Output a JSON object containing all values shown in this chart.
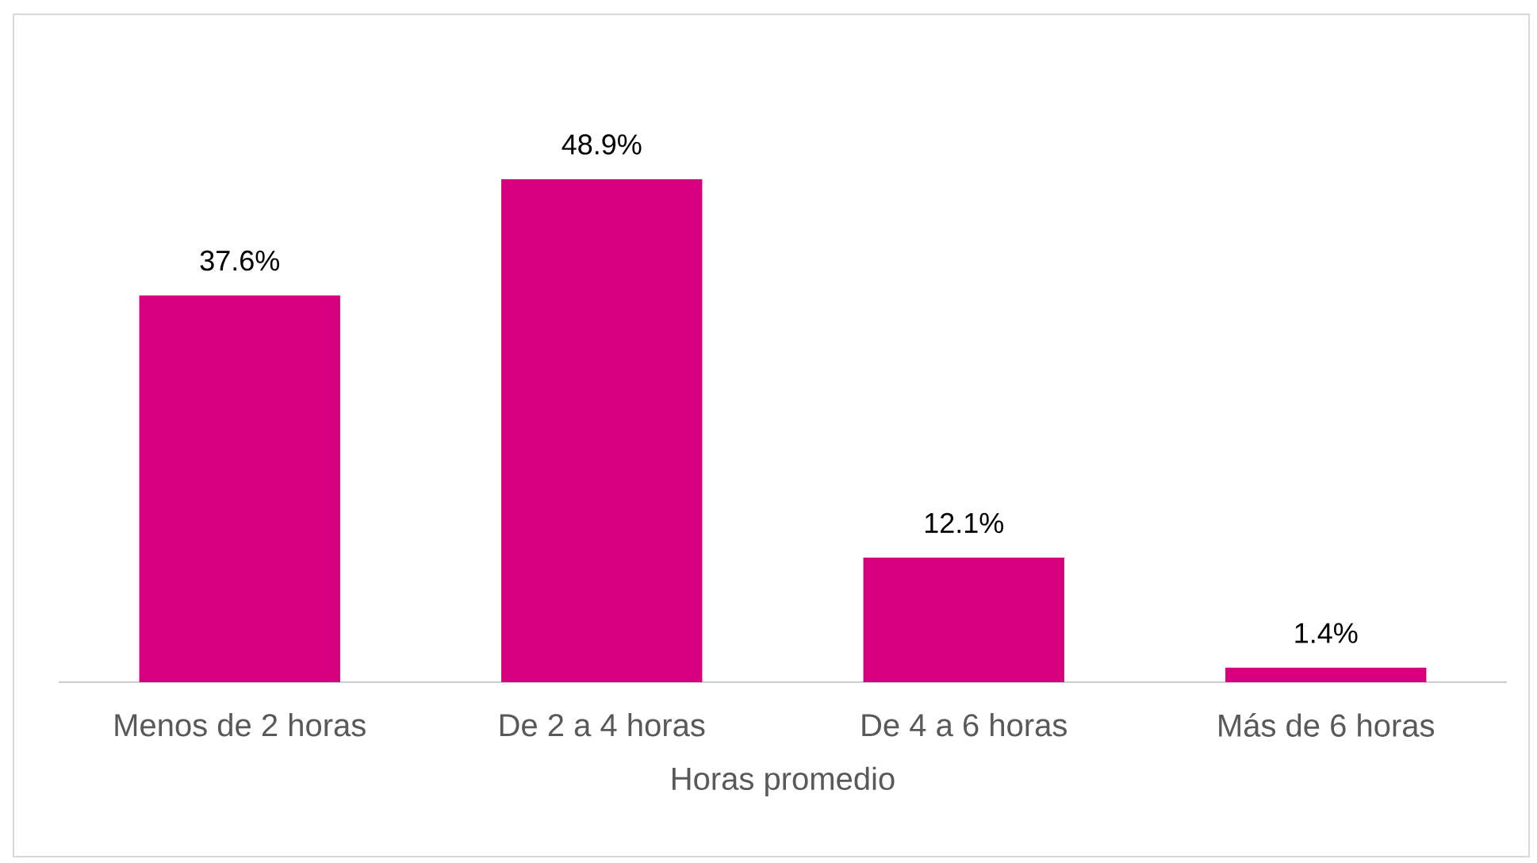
{
  "chart_data": {
    "type": "bar",
    "xlabel": "Horas promedio",
    "categories": [
      "Menos de 2 horas",
      "De 2 a 4 horas",
      "De 4 a 6 horas",
      "Más de 6 horas"
    ],
    "values": [
      37.6,
      48.9,
      12.1,
      1.4
    ],
    "value_labels": [
      "37.6%",
      "48.9%",
      "12.1%",
      "1.4%"
    ],
    "color": "#d6007f"
  }
}
